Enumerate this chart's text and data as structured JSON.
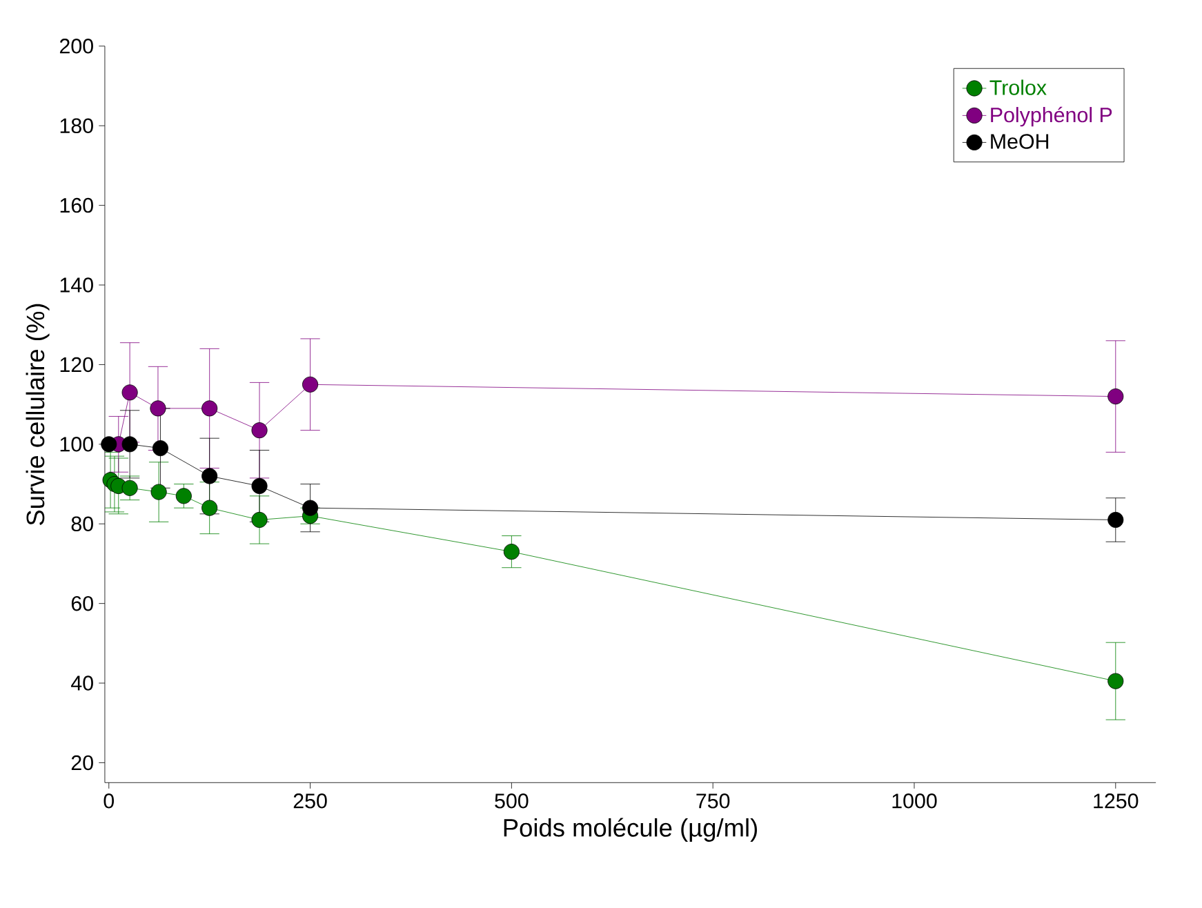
{
  "chart_data": {
    "type": "line",
    "xlabel": "Poids molécule (µg/ml)",
    "ylabel": "Survie cellulaire (%)",
    "xlim": [
      -5,
      1300
    ],
    "ylim": [
      15,
      200
    ],
    "xticks": [
      0,
      250,
      500,
      750,
      1000,
      1250
    ],
    "yticks": [
      20,
      40,
      60,
      80,
      100,
      120,
      140,
      160,
      180,
      200
    ],
    "legend": "top right",
    "marker": "circle",
    "grid": false,
    "series": [
      {
        "name": "Trolox",
        "color": "#008000",
        "x": [
          2,
          7,
          12,
          26,
          62,
          93,
          125,
          187,
          250,
          500,
          1250
        ],
        "values": [
          91,
          90,
          89.5,
          89,
          88,
          87,
          84,
          81,
          82,
          73,
          40.5
        ],
        "errors": [
          7,
          7,
          7,
          3,
          7.5,
          3,
          6.5,
          6,
          2,
          4,
          9.7
        ]
      },
      {
        "name": "Polyphénol P",
        "color": "#800080",
        "x": [
          12,
          26,
          61,
          125,
          187,
          250,
          1250
        ],
        "values": [
          100,
          113,
          109,
          109,
          103.5,
          115,
          112
        ],
        "errors": [
          7,
          12.5,
          10.5,
          15,
          12,
          11.5,
          14
        ]
      },
      {
        "name": "MeOH",
        "color": "#000000",
        "x": [
          0,
          26,
          64,
          125,
          187,
          250,
          1250
        ],
        "values": [
          100,
          100,
          99,
          92,
          89.5,
          84,
          81
        ],
        "errors": [
          0,
          8.5,
          10,
          9.5,
          9,
          6,
          5.5
        ]
      }
    ]
  }
}
